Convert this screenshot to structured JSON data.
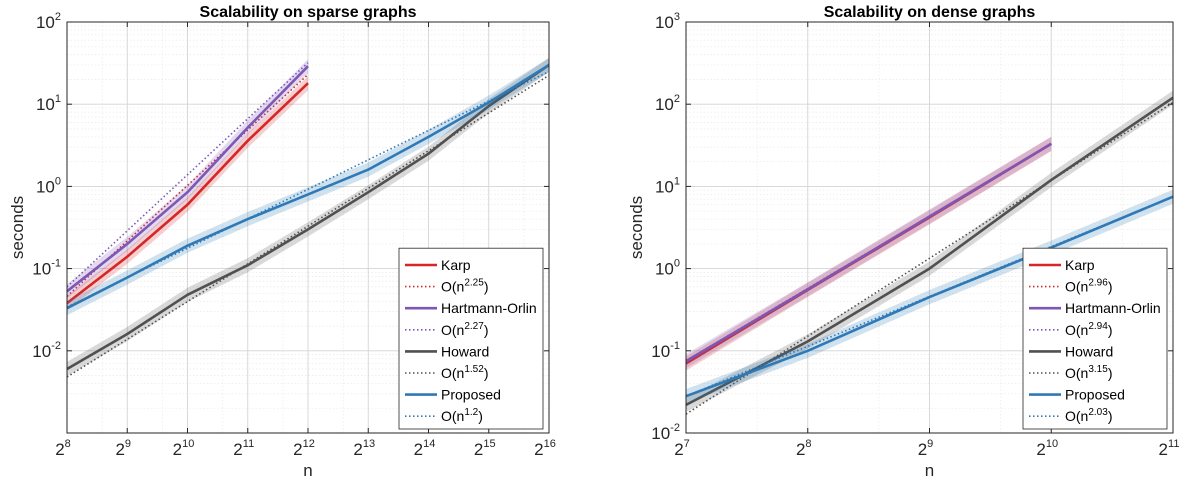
{
  "chart_data": [
    {
      "type": "line",
      "title": "Scalability on sparse graphs",
      "xlabel": "n",
      "ylabel": "seconds",
      "xscale": "log2",
      "yscale": "log10",
      "xlim_exp2": [
        8,
        16
      ],
      "ylim": [
        0.001,
        100
      ],
      "x_ticks": [
        {
          "base": "2",
          "exp": "8"
        },
        {
          "base": "2",
          "exp": "9"
        },
        {
          "base": "2",
          "exp": "10"
        },
        {
          "base": "2",
          "exp": "11"
        },
        {
          "base": "2",
          "exp": "12"
        },
        {
          "base": "2",
          "exp": "13"
        },
        {
          "base": "2",
          "exp": "14"
        },
        {
          "base": "2",
          "exp": "15"
        },
        {
          "base": "2",
          "exp": "16"
        }
      ],
      "y_ticks": [
        {
          "base": "10",
          "exp": "-2",
          "value": 0.01
        },
        {
          "base": "10",
          "exp": "-1",
          "value": 0.1
        },
        {
          "base": "10",
          "exp": "0",
          "value": 1
        },
        {
          "base": "10",
          "exp": "1",
          "value": 10
        },
        {
          "base": "10",
          "exp": "2",
          "value": 100
        }
      ],
      "grid": true,
      "legend_position": "bottom-right",
      "series": [
        {
          "name": "Karp",
          "color": "#d62728",
          "style": "solid",
          "band": true,
          "x": [
            256,
            512,
            1024,
            2048,
            4096
          ],
          "y": [
            0.038,
            0.14,
            0.6,
            3.6,
            18
          ]
        },
        {
          "name": "O(n2.25)",
          "legend": {
            "base": "O(n",
            "sup": "2.25",
            "tail": ")"
          },
          "color": "#d62728",
          "style": "dotted",
          "x": [
            256,
            4096
          ],
          "y": [
            0.046,
            23
          ]
        },
        {
          "name": "Hartmann-Orlin",
          "color": "#7e57b4",
          "style": "solid",
          "band": true,
          "x": [
            256,
            512,
            1024,
            2048,
            4096
          ],
          "y": [
            0.053,
            0.2,
            0.85,
            5.2,
            29
          ]
        },
        {
          "name": "O(n2.27)",
          "legend": {
            "base": "O(n",
            "sup": "2.27",
            "tail": ")"
          },
          "color": "#7e57b4",
          "style": "dotted",
          "x": [
            256,
            4096
          ],
          "y": [
            0.06,
            32
          ]
        },
        {
          "name": "Howard",
          "color": "#505050",
          "style": "solid",
          "band": true,
          "x": [
            256,
            512,
            1024,
            2048,
            4096,
            8192,
            16384,
            32768,
            65536
          ],
          "y": [
            0.006,
            0.016,
            0.048,
            0.11,
            0.3,
            0.85,
            2.5,
            9.5,
            30
          ]
        },
        {
          "name": "O(n1.52)",
          "legend": {
            "base": "O(n",
            "sup": "1.52",
            "tail": ")"
          },
          "color": "#505050",
          "style": "dotted",
          "x": [
            256,
            65536
          ],
          "y": [
            0.0048,
            22.5
          ]
        },
        {
          "name": "Proposed",
          "color": "#2f79b7",
          "style": "solid",
          "band": true,
          "x": [
            256,
            512,
            1024,
            2048,
            4096,
            8192,
            16384,
            32768,
            65536
          ],
          "y": [
            0.033,
            0.078,
            0.19,
            0.4,
            0.8,
            1.6,
            4.0,
            10.5,
            30
          ]
        },
        {
          "name": "O(n1.2)",
          "legend": {
            "base": "O(n",
            "sup": "1.2",
            "tail": ")"
          },
          "color": "#2f79b7",
          "style": "dotted",
          "x": [
            256,
            65536
          ],
          "y": [
            0.034,
            25
          ]
        }
      ]
    },
    {
      "type": "line",
      "title": "Scalability on dense graphs",
      "xlabel": "n",
      "ylabel": "seconds",
      "xscale": "log2",
      "yscale": "log10",
      "xlim_exp2": [
        7,
        11
      ],
      "ylim": [
        0.01,
        1000
      ],
      "x_ticks": [
        {
          "base": "2",
          "exp": "7"
        },
        {
          "base": "2",
          "exp": "8"
        },
        {
          "base": "2",
          "exp": "9"
        },
        {
          "base": "2",
          "exp": "10"
        },
        {
          "base": "2",
          "exp": "11"
        }
      ],
      "y_ticks": [
        {
          "base": "10",
          "exp": "-2",
          "value": 0.01
        },
        {
          "base": "10",
          "exp": "-1",
          "value": 0.1
        },
        {
          "base": "10",
          "exp": "0",
          "value": 1
        },
        {
          "base": "10",
          "exp": "1",
          "value": 10
        },
        {
          "base": "10",
          "exp": "2",
          "value": 100
        },
        {
          "base": "10",
          "exp": "3",
          "value": 1000
        }
      ],
      "grid": true,
      "legend_position": "bottom-right",
      "series": [
        {
          "name": "Karp",
          "color": "#d62728",
          "style": "solid",
          "band": true,
          "x": [
            128,
            256,
            512,
            1024
          ],
          "y": [
            0.07,
            0.55,
            4.2,
            33
          ]
        },
        {
          "name": "O(n2.96)",
          "legend": {
            "base": "O(n",
            "sup": "2.96",
            "tail": ")"
          },
          "color": "#d62728",
          "style": "dotted",
          "x": [
            128,
            1024
          ],
          "y": [
            0.072,
            33
          ]
        },
        {
          "name": "Hartmann-Orlin",
          "color": "#7e57b4",
          "style": "solid",
          "band": true,
          "x": [
            128,
            256,
            512,
            1024
          ],
          "y": [
            0.075,
            0.56,
            4.3,
            33
          ]
        },
        {
          "name": "O(n2.94)",
          "legend": {
            "base": "O(n",
            "sup": "2.94",
            "tail": ")"
          },
          "color": "#7e57b4",
          "style": "dotted",
          "x": [
            128,
            1024
          ],
          "y": [
            0.076,
            33
          ]
        },
        {
          "name": "Howard",
          "color": "#505050",
          "style": "solid",
          "band": true,
          "x": [
            128,
            256,
            512,
            1024,
            2048
          ],
          "y": [
            0.022,
            0.13,
            1.0,
            12,
            120
          ]
        },
        {
          "name": "O(n3.15)",
          "legend": {
            "base": "O(n",
            "sup": "3.15",
            "tail": ")"
          },
          "color": "#505050",
          "style": "dotted",
          "x": [
            128,
            2048
          ],
          "y": [
            0.017,
            105
          ]
        },
        {
          "name": "Proposed",
          "color": "#2f79b7",
          "style": "solid",
          "band": true,
          "x": [
            128,
            256,
            512,
            1024,
            2048
          ],
          "y": [
            0.028,
            0.1,
            0.45,
            1.8,
            7.5
          ]
        },
        {
          "name": "O(n2.03)",
          "legend": {
            "base": "O(n",
            "sup": "2.03",
            "tail": ")"
          },
          "color": "#2f79b7",
          "style": "dotted",
          "x": [
            128,
            2048
          ],
          "y": [
            0.028,
            7.5
          ]
        }
      ]
    }
  ]
}
